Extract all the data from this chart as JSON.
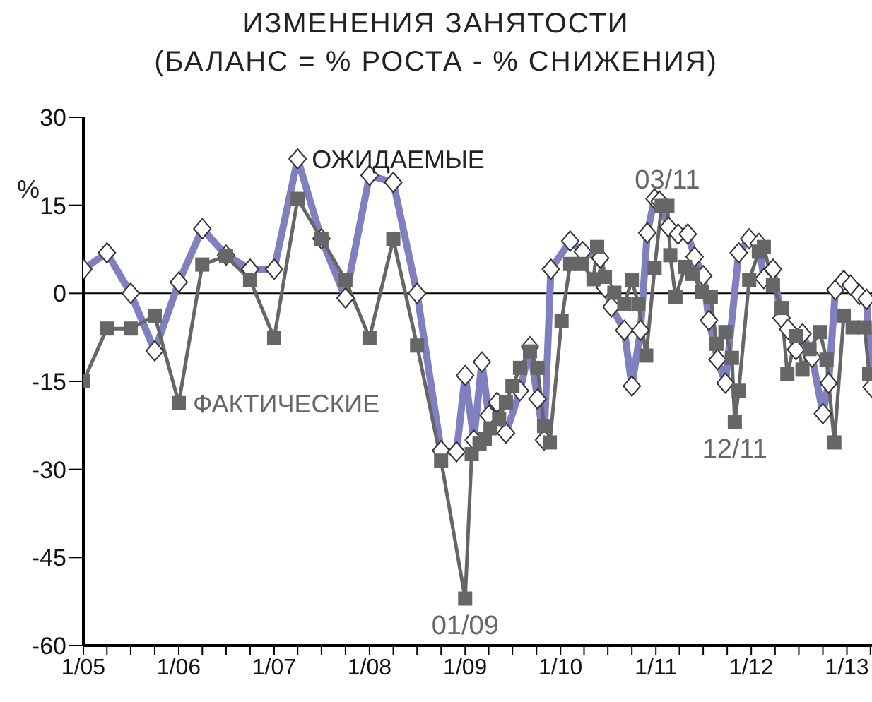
{
  "chart_data": {
    "type": "line",
    "title": "ИЗМЕНЕНИЯ ЗАНЯТОСТИ",
    "subtitle": "(БАЛАНС = % РОСТА - % СНИЖЕНИЯ)",
    "ylabel": "%",
    "xlim": [
      "2005-01-01",
      "2013-04-07"
    ],
    "ylim": [
      -60,
      30
    ],
    "yticks": [
      -60,
      -45,
      -30,
      -15,
      0,
      15,
      30
    ],
    "xticks": [
      {
        "value": "2005-01-01",
        "label": "1/05"
      },
      {
        "value": "2005-04-01",
        "label": null
      },
      {
        "value": "2005-07-01",
        "label": null
      },
      {
        "value": "2005-10-01",
        "label": null
      },
      {
        "value": "2006-01-01",
        "label": "1/06"
      },
      {
        "value": "2006-04-01",
        "label": null
      },
      {
        "value": "2006-07-01",
        "label": null
      },
      {
        "value": "2006-10-01",
        "label": null
      },
      {
        "value": "2007-01-01",
        "label": "1/07"
      },
      {
        "value": "2007-04-01",
        "label": null
      },
      {
        "value": "2007-07-01",
        "label": null
      },
      {
        "value": "2007-10-01",
        "label": null
      },
      {
        "value": "2008-01-01",
        "label": "1/08"
      },
      {
        "value": "2008-04-01",
        "label": null
      },
      {
        "value": "2008-07-01",
        "label": null
      },
      {
        "value": "2008-10-01",
        "label": null
      },
      {
        "value": "2009-01-01",
        "label": "1/09"
      },
      {
        "value": "2009-04-01",
        "label": null
      },
      {
        "value": "2009-07-01",
        "label": null
      },
      {
        "value": "2009-10-01",
        "label": null
      },
      {
        "value": "2010-01-01",
        "label": "1/10"
      },
      {
        "value": "2010-04-01",
        "label": null
      },
      {
        "value": "2010-07-01",
        "label": null
      },
      {
        "value": "2010-10-01",
        "label": null
      },
      {
        "value": "2011-01-01",
        "label": "1/11"
      },
      {
        "value": "2011-04-01",
        "label": null
      },
      {
        "value": "2011-07-01",
        "label": null
      },
      {
        "value": "2011-10-01",
        "label": null
      },
      {
        "value": "2012-01-01",
        "label": "1/12"
      },
      {
        "value": "2012-04-01",
        "label": null
      },
      {
        "value": "2012-07-01",
        "label": null
      },
      {
        "value": "2012-10-01",
        "label": null
      },
      {
        "value": "2013-01-01",
        "label": "1/13"
      },
      {
        "value": "2013-04-01",
        "label": null
      }
    ],
    "grid": false,
    "legend": false,
    "ref_lines": [
      {
        "axis": "y",
        "value": 0,
        "color": "#000000"
      }
    ],
    "annotations": [
      {
        "text": "03/11",
        "x": "2011-02-14",
        "y": 14.9
      },
      {
        "text": "12/11",
        "x": "2011-10-30",
        "y": -21.9
      },
      {
        "text": "01/09",
        "x": "2009-01-01",
        "y": -52
      }
    ],
    "series": [
      {
        "name": "ОЖИДАЕМЫЕ",
        "color": "#8080c0",
        "marker": "diamond",
        "x": [
          "2005-01-01",
          "2005-04-01",
          "2005-07-01",
          "2005-10-01",
          "2006-01-01",
          "2006-04-01",
          "2006-07-01",
          "2006-10-01",
          "2007-01-01",
          "2007-04-01",
          "2007-07-01",
          "2007-10-01",
          "2008-01-01",
          "2008-04-01",
          "2008-07-01",
          "2008-10-01",
          "2008-11-29",
          "2009-01-01",
          "2009-02-03",
          "2009-03-06",
          "2009-04-01",
          "2009-05-03",
          "2009-06-06",
          "2009-07-30",
          "2009-09-06",
          "2009-10-05",
          "2009-10-30",
          "2009-11-25",
          "2010-02-07",
          "2010-03-27",
          "2010-06-02",
          "2010-06-20",
          "2010-07-15",
          "2010-09-02",
          "2010-10-01",
          "2010-11-03",
          "2010-11-29",
          "2010-12-27",
          "2011-01-15",
          "2011-02-18",
          "2011-03-27",
          "2011-05-03",
          "2011-05-29",
          "2011-07-01",
          "2011-07-23",
          "2011-08-25",
          "2011-09-24",
          "2011-11-14",
          "2011-12-24",
          "2012-01-30",
          "2012-02-18",
          "2012-03-24",
          "2012-04-26",
          "2012-05-21",
          "2012-06-20",
          "2012-07-15",
          "2012-08-21",
          "2012-10-01",
          "2012-10-23",
          "2012-11-18",
          "2012-12-20",
          "2013-01-15",
          "2013-02-18",
          "2013-03-17",
          "2013-04-06"
        ],
        "values": [
          4.1,
          6.9,
          0,
          -9.8,
          1.9,
          11,
          6.5,
          4.1,
          4.1,
          22.9,
          9.3,
          -0.8,
          20.1,
          18.9,
          0,
          -26.8,
          -27,
          -14,
          -25,
          -11.7,
          -20.8,
          -18.6,
          -23.8,
          -16.6,
          -9.1,
          -18,
          -25,
          4.1,
          8.9,
          7.1,
          6,
          1,
          -2.3,
          -6.3,
          -15.8,
          -6.3,
          10.3,
          16.1,
          15.7,
          11.3,
          10.1,
          10.1,
          6.2,
          3,
          -4.6,
          -11.3,
          -15.3,
          6.9,
          9.3,
          8.5,
          2.5,
          4.1,
          -4.2,
          -6.1,
          -9.6,
          -6.9,
          -10.9,
          -20.5,
          -15.3,
          0.6,
          2.2,
          1.4,
          -0.2,
          -1,
          -16
        ]
      },
      {
        "name": "ФАКТИЧЕСКИЕ",
        "color": "#666666",
        "marker": "square",
        "x": [
          "2005-01-01",
          "2005-04-01",
          "2005-07-01",
          "2005-10-01",
          "2006-01-01",
          "2006-04-01",
          "2006-07-01",
          "2006-10-01",
          "2007-01-01",
          "2007-04-01",
          "2007-07-01",
          "2007-10-01",
          "2008-01-01",
          "2008-04-01",
          "2008-07-01",
          "2008-10-01",
          "2009-01-01",
          "2009-01-26",
          "2009-02-25",
          "2009-03-17",
          "2009-04-08",
          "2009-05-11",
          "2009-06-06",
          "2009-07-01",
          "2009-07-30",
          "2009-09-06",
          "2009-10-05",
          "2009-10-30",
          "2009-11-21",
          "2010-01-05",
          "2010-02-07",
          "2010-03-24",
          "2010-05-07",
          "2010-05-21",
          "2010-06-20",
          "2010-07-26",
          "2010-09-02",
          "2010-10-01",
          "2010-10-26",
          "2010-11-25",
          "2010-12-27",
          "2011-01-23",
          "2011-02-14",
          "2011-02-25",
          "2011-03-17",
          "2011-04-23",
          "2011-05-21",
          "2011-06-27",
          "2011-07-30",
          "2011-08-21",
          "2011-09-24",
          "2011-10-19",
          "2011-10-30",
          "2011-11-14",
          "2011-12-24",
          "2012-01-30",
          "2012-02-18",
          "2012-03-24",
          "2012-04-26",
          "2012-05-18",
          "2012-06-20",
          "2012-07-15",
          "2012-08-11",
          "2012-09-20",
          "2012-10-15",
          "2012-11-14",
          "2012-12-20",
          "2013-01-23",
          "2013-03-10",
          "2013-03-27"
        ],
        "values": [
          -15,
          -6,
          -6,
          -3.8,
          -18.7,
          4.9,
          6.3,
          2.3,
          -7.6,
          16.1,
          9.3,
          2.3,
          -7.6,
          9.2,
          -8.9,
          -28.5,
          -52,
          -27.4,
          -25.6,
          -24.8,
          -23,
          -21.4,
          -18.6,
          -15.8,
          -12.7,
          -9.9,
          -12.7,
          -22.6,
          -25.4,
          -4.7,
          5,
          5,
          2.4,
          7.9,
          2.8,
          0.1,
          -1.8,
          2.2,
          -1.8,
          -10.6,
          4.3,
          14.9,
          14.9,
          6.5,
          -0.6,
          4.5,
          3.3,
          0.2,
          -0.6,
          -8.6,
          -6.6,
          -11,
          -21.9,
          -16.6,
          2.3,
          7.1,
          7.9,
          1.4,
          -2.5,
          -13.8,
          -7.3,
          -13,
          -9.5,
          -6.6,
          -11.3,
          -25.4,
          -3.8,
          -5.8,
          -5.8,
          -13.8
        ]
      }
    ]
  }
}
